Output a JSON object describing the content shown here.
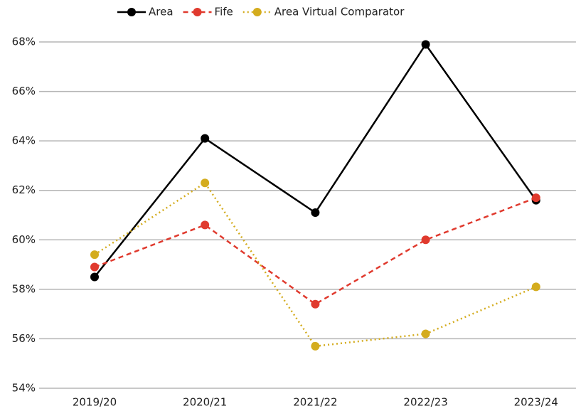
{
  "chart_data": {
    "type": "line",
    "categories": [
      "2019/20",
      "2020/21",
      "2021/22",
      "2022/23",
      "2023/24"
    ],
    "series": [
      {
        "name": "Area",
        "color": "#000000",
        "dash": "solid",
        "values": [
          58.5,
          64.1,
          61.1,
          67.9,
          61.6
        ]
      },
      {
        "name": "Fife",
        "color": "#e03a2e",
        "dash": "dashed",
        "values": [
          58.9,
          60.6,
          57.4,
          60.0,
          61.7
        ]
      },
      {
        "name": "Area Virtual Comparator",
        "color": "#d4ac1e",
        "dash": "dotted",
        "values": [
          59.4,
          62.3,
          55.7,
          56.2,
          58.1
        ]
      }
    ],
    "ylim": [
      54,
      68
    ],
    "yticks": [
      {
        "value": 54,
        "label": "54%"
      },
      {
        "value": 56,
        "label": "56%"
      },
      {
        "value": 58,
        "label": "58%"
      },
      {
        "value": 60,
        "label": "60%"
      },
      {
        "value": 62,
        "label": "62%"
      },
      {
        "value": 64,
        "label": "64%"
      },
      {
        "value": 66,
        "label": "66%"
      },
      {
        "value": 68,
        "label": "68%"
      }
    ],
    "grid": true,
    "legend": "top"
  }
}
